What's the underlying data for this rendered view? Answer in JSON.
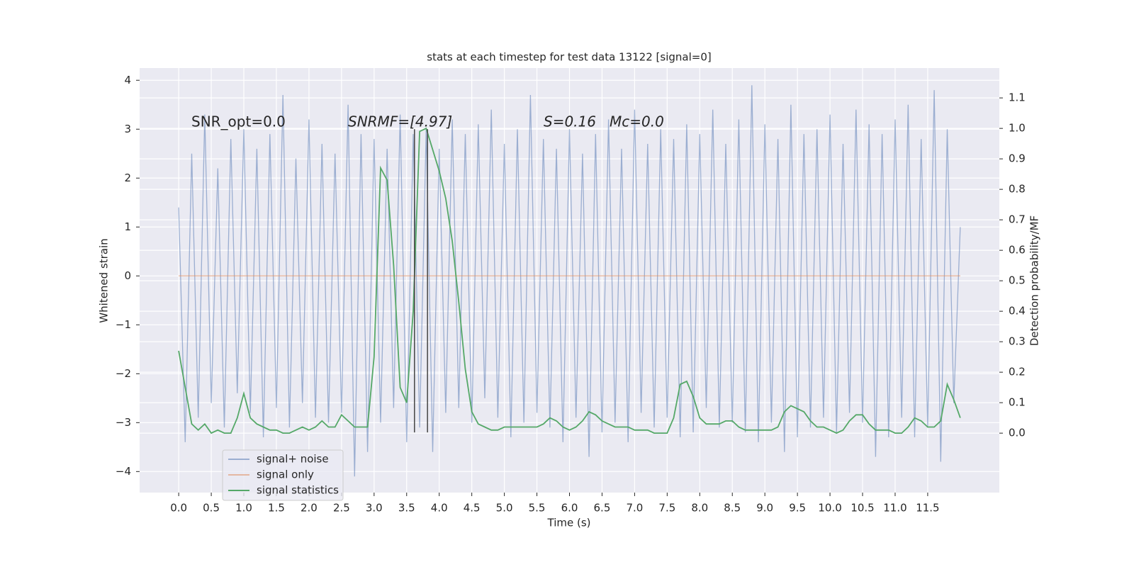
{
  "chart_data": {
    "type": "line",
    "title": "stats at each timestep for test data 13122 [signal=0]",
    "xlabel": "Time (s)",
    "ylabel": "Whitened strain",
    "y2label": "Detection probability/MF",
    "annotations": [
      "SNR_opt=0.0",
      "SNRMF=[4.97]",
      "S=0.16",
      "Mc=0.0"
    ],
    "x": [
      0.0,
      0.1,
      0.2,
      0.3,
      0.4,
      0.5,
      0.6,
      0.7,
      0.8,
      0.9,
      1.0,
      1.1,
      1.2,
      1.3,
      1.4,
      1.5,
      1.6,
      1.7,
      1.8,
      1.9,
      2.0,
      2.1,
      2.2,
      2.3,
      2.4,
      2.5,
      2.6,
      2.7,
      2.8,
      2.9,
      3.0,
      3.1,
      3.2,
      3.3,
      3.4,
      3.5,
      3.6,
      3.7,
      3.8,
      3.9,
      4.0,
      4.1,
      4.2,
      4.3,
      4.4,
      4.5,
      4.6,
      4.7,
      4.8,
      4.9,
      5.0,
      5.1,
      5.2,
      5.3,
      5.4,
      5.5,
      5.6,
      5.7,
      5.8,
      5.9,
      6.0,
      6.1,
      6.2,
      6.3,
      6.4,
      6.5,
      6.6,
      6.7,
      6.8,
      6.9,
      7.0,
      7.1,
      7.2,
      7.3,
      7.4,
      7.5,
      7.6,
      7.7,
      7.8,
      7.9,
      8.0,
      8.1,
      8.2,
      8.3,
      8.4,
      8.5,
      8.6,
      8.7,
      8.8,
      8.9,
      9.0,
      9.1,
      9.2,
      9.3,
      9.4,
      9.5,
      9.6,
      9.7,
      9.8,
      9.9,
      10.0,
      10.1,
      10.2,
      10.3,
      10.4,
      10.5,
      10.6,
      10.7,
      10.8,
      10.9,
      11.0,
      11.1,
      11.2,
      11.3,
      11.4,
      11.5,
      11.6,
      11.7,
      11.8,
      11.9,
      12.0
    ],
    "series": [
      {
        "name": "signal+ noise",
        "color": "#4c72b0",
        "axis": "y",
        "values": [
          1.4,
          -3.4,
          2.5,
          -2.9,
          3.3,
          -2.6,
          2.2,
          -3.1,
          2.8,
          -2.4,
          3.0,
          -2.8,
          2.6,
          -3.3,
          2.9,
          -2.7,
          3.7,
          -3.1,
          2.4,
          -2.6,
          3.2,
          -2.9,
          2.7,
          -3.0,
          2.5,
          -2.8,
          3.5,
          -4.1,
          2.9,
          -3.6,
          2.8,
          -3.0,
          2.6,
          -2.7,
          3.3,
          -3.4,
          2.9,
          -3.1,
          3.0,
          -3.6,
          2.6,
          -2.8,
          3.2,
          -2.7,
          2.9,
          -3.0,
          3.1,
          -2.5,
          3.4,
          -2.9,
          2.7,
          -3.3,
          3.0,
          -3.0,
          3.7,
          -2.8,
          2.8,
          -3.1,
          2.6,
          -3.4,
          3.0,
          -2.9,
          2.5,
          -3.7,
          2.9,
          -3.2,
          3.2,
          -3.0,
          2.6,
          -3.4,
          3.4,
          -2.8,
          2.7,
          -3.1,
          3.0,
          -2.9,
          2.8,
          -3.3,
          3.1,
          -3.2,
          2.9,
          -2.7,
          3.4,
          -3.1,
          2.7,
          -3.0,
          3.2,
          -3.2,
          3.9,
          -3.4,
          3.1,
          -3.0,
          2.8,
          -3.6,
          3.5,
          -3.3,
          2.9,
          -3.1,
          3.0,
          -2.9,
          3.3,
          -3.2,
          2.7,
          -2.8,
          3.4,
          -3.0,
          3.1,
          -3.7,
          2.9,
          -3.3,
          3.2,
          -2.9,
          3.5,
          -3.3,
          2.8,
          -3.1,
          3.8,
          -3.8,
          3.0,
          -2.6,
          1.0
        ]
      },
      {
        "name": "signal only",
        "color": "#dd8452",
        "axis": "y",
        "values": [
          0,
          0,
          0,
          0,
          0,
          0,
          0,
          0,
          0,
          0,
          0,
          0,
          0,
          0,
          0,
          0,
          0,
          0,
          0,
          0,
          0,
          0,
          0,
          0,
          0,
          0,
          0,
          0,
          0,
          0,
          0,
          0,
          0,
          0,
          0,
          0,
          0,
          0,
          0,
          0,
          0,
          0,
          0,
          0,
          0,
          0,
          0,
          0,
          0,
          0,
          0,
          0,
          0,
          0,
          0,
          0,
          0,
          0,
          0,
          0,
          0,
          0,
          0,
          0,
          0,
          0,
          0,
          0,
          0,
          0,
          0,
          0,
          0,
          0,
          0,
          0,
          0,
          0,
          0,
          0,
          0,
          0,
          0,
          0,
          0,
          0,
          0,
          0,
          0,
          0,
          0,
          0,
          0,
          0,
          0,
          0,
          0,
          0,
          0,
          0,
          0,
          0,
          0,
          0,
          0,
          0,
          0,
          0,
          0,
          0,
          0,
          0,
          0,
          0,
          0,
          0,
          0,
          0,
          0,
          0,
          0
        ]
      },
      {
        "name": "signal statistics",
        "color": "#55a868",
        "axis": "y2",
        "values": [
          0.27,
          0.15,
          0.03,
          0.01,
          0.03,
          0.0,
          0.01,
          0.0,
          0.0,
          0.05,
          0.13,
          0.05,
          0.03,
          0.02,
          0.01,
          0.01,
          0.0,
          0.0,
          0.01,
          0.02,
          0.01,
          0.02,
          0.04,
          0.02,
          0.02,
          0.06,
          0.04,
          0.02,
          0.02,
          0.02,
          0.25,
          0.87,
          0.83,
          0.55,
          0.15,
          0.1,
          0.4,
          0.99,
          1.0,
          0.93,
          0.86,
          0.77,
          0.63,
          0.43,
          0.21,
          0.07,
          0.03,
          0.02,
          0.01,
          0.01,
          0.02,
          0.02,
          0.02,
          0.02,
          0.02,
          0.02,
          0.03,
          0.05,
          0.04,
          0.02,
          0.01,
          0.02,
          0.04,
          0.07,
          0.06,
          0.04,
          0.03,
          0.02,
          0.02,
          0.02,
          0.01,
          0.01,
          0.01,
          0.0,
          0.0,
          0.0,
          0.05,
          0.16,
          0.17,
          0.12,
          0.05,
          0.03,
          0.03,
          0.03,
          0.04,
          0.04,
          0.02,
          0.01,
          0.01,
          0.01,
          0.01,
          0.01,
          0.02,
          0.07,
          0.09,
          0.08,
          0.07,
          0.04,
          0.02,
          0.02,
          0.01,
          0.0,
          0.01,
          0.04,
          0.06,
          0.06,
          0.03,
          0.01,
          0.01,
          0.01,
          0.0,
          0.0,
          0.02,
          0.05,
          0.04,
          0.02,
          0.02,
          0.04,
          0.16,
          0.11,
          0.05
        ]
      }
    ],
    "vlines": {
      "x": [
        3.62,
        3.82
      ],
      "ymin": -3.2,
      "ymax": 3.0,
      "color": "#444444"
    },
    "xlim": [
      -0.6,
      12.6
    ],
    "ylim": [
      -4.43,
      4.25
    ],
    "y2lim": [
      -0.195,
      1.198
    ],
    "xticks": [
      {
        "value": 0,
        "label": "0.0"
      },
      {
        "value": 0.5,
        "label": "0.5"
      },
      {
        "value": 1,
        "label": "1.0"
      },
      {
        "value": 1.5,
        "label": "1.5"
      },
      {
        "value": 2,
        "label": "2.0"
      },
      {
        "value": 2.5,
        "label": "2.5"
      },
      {
        "value": 3,
        "label": "3.0"
      },
      {
        "value": 3.5,
        "label": "3.5"
      },
      {
        "value": 4,
        "label": "4.0"
      },
      {
        "value": 4.5,
        "label": "4.5"
      },
      {
        "value": 5,
        "label": "5.0"
      },
      {
        "value": 5.5,
        "label": "5.5"
      },
      {
        "value": 6,
        "label": "6.0"
      },
      {
        "value": 6.5,
        "label": "6.5"
      },
      {
        "value": 7,
        "label": "7.0"
      },
      {
        "value": 7.5,
        "label": "7.5"
      },
      {
        "value": 8,
        "label": "8.0"
      },
      {
        "value": 8.5,
        "label": "8.5"
      },
      {
        "value": 9,
        "label": "9.0"
      },
      {
        "value": 9.5,
        "label": "9.5"
      },
      {
        "value": 10,
        "label": "10.0"
      },
      {
        "value": 10.5,
        "label": "10.5"
      },
      {
        "value": 11,
        "label": "11.0"
      },
      {
        "value": 11.5,
        "label": "11.5"
      }
    ],
    "yticks": [
      {
        "value": -4,
        "label": "−4"
      },
      {
        "value": -3,
        "label": "−3"
      },
      {
        "value": -2,
        "label": "−2"
      },
      {
        "value": -1,
        "label": "−1"
      },
      0,
      1,
      2,
      3,
      4
    ],
    "y2ticks": [
      {
        "value": 0,
        "label": "0.0"
      },
      {
        "value": 0.1,
        "label": "0.1"
      },
      {
        "value": 0.2,
        "label": "0.2"
      },
      {
        "value": 0.3,
        "label": "0.3"
      },
      {
        "value": 0.4,
        "label": "0.4"
      },
      {
        "value": 0.5,
        "label": "0.5"
      },
      {
        "value": 0.6,
        "label": "0.6"
      },
      {
        "value": 0.7,
        "label": "0.7"
      },
      {
        "value": 0.8,
        "label": "0.8"
      },
      {
        "value": 0.9,
        "label": "0.9"
      },
      {
        "value": 1.0,
        "label": "1.0"
      },
      {
        "value": 1.1,
        "label": "1.1"
      }
    ],
    "grid": true,
    "legend": "lower left"
  }
}
